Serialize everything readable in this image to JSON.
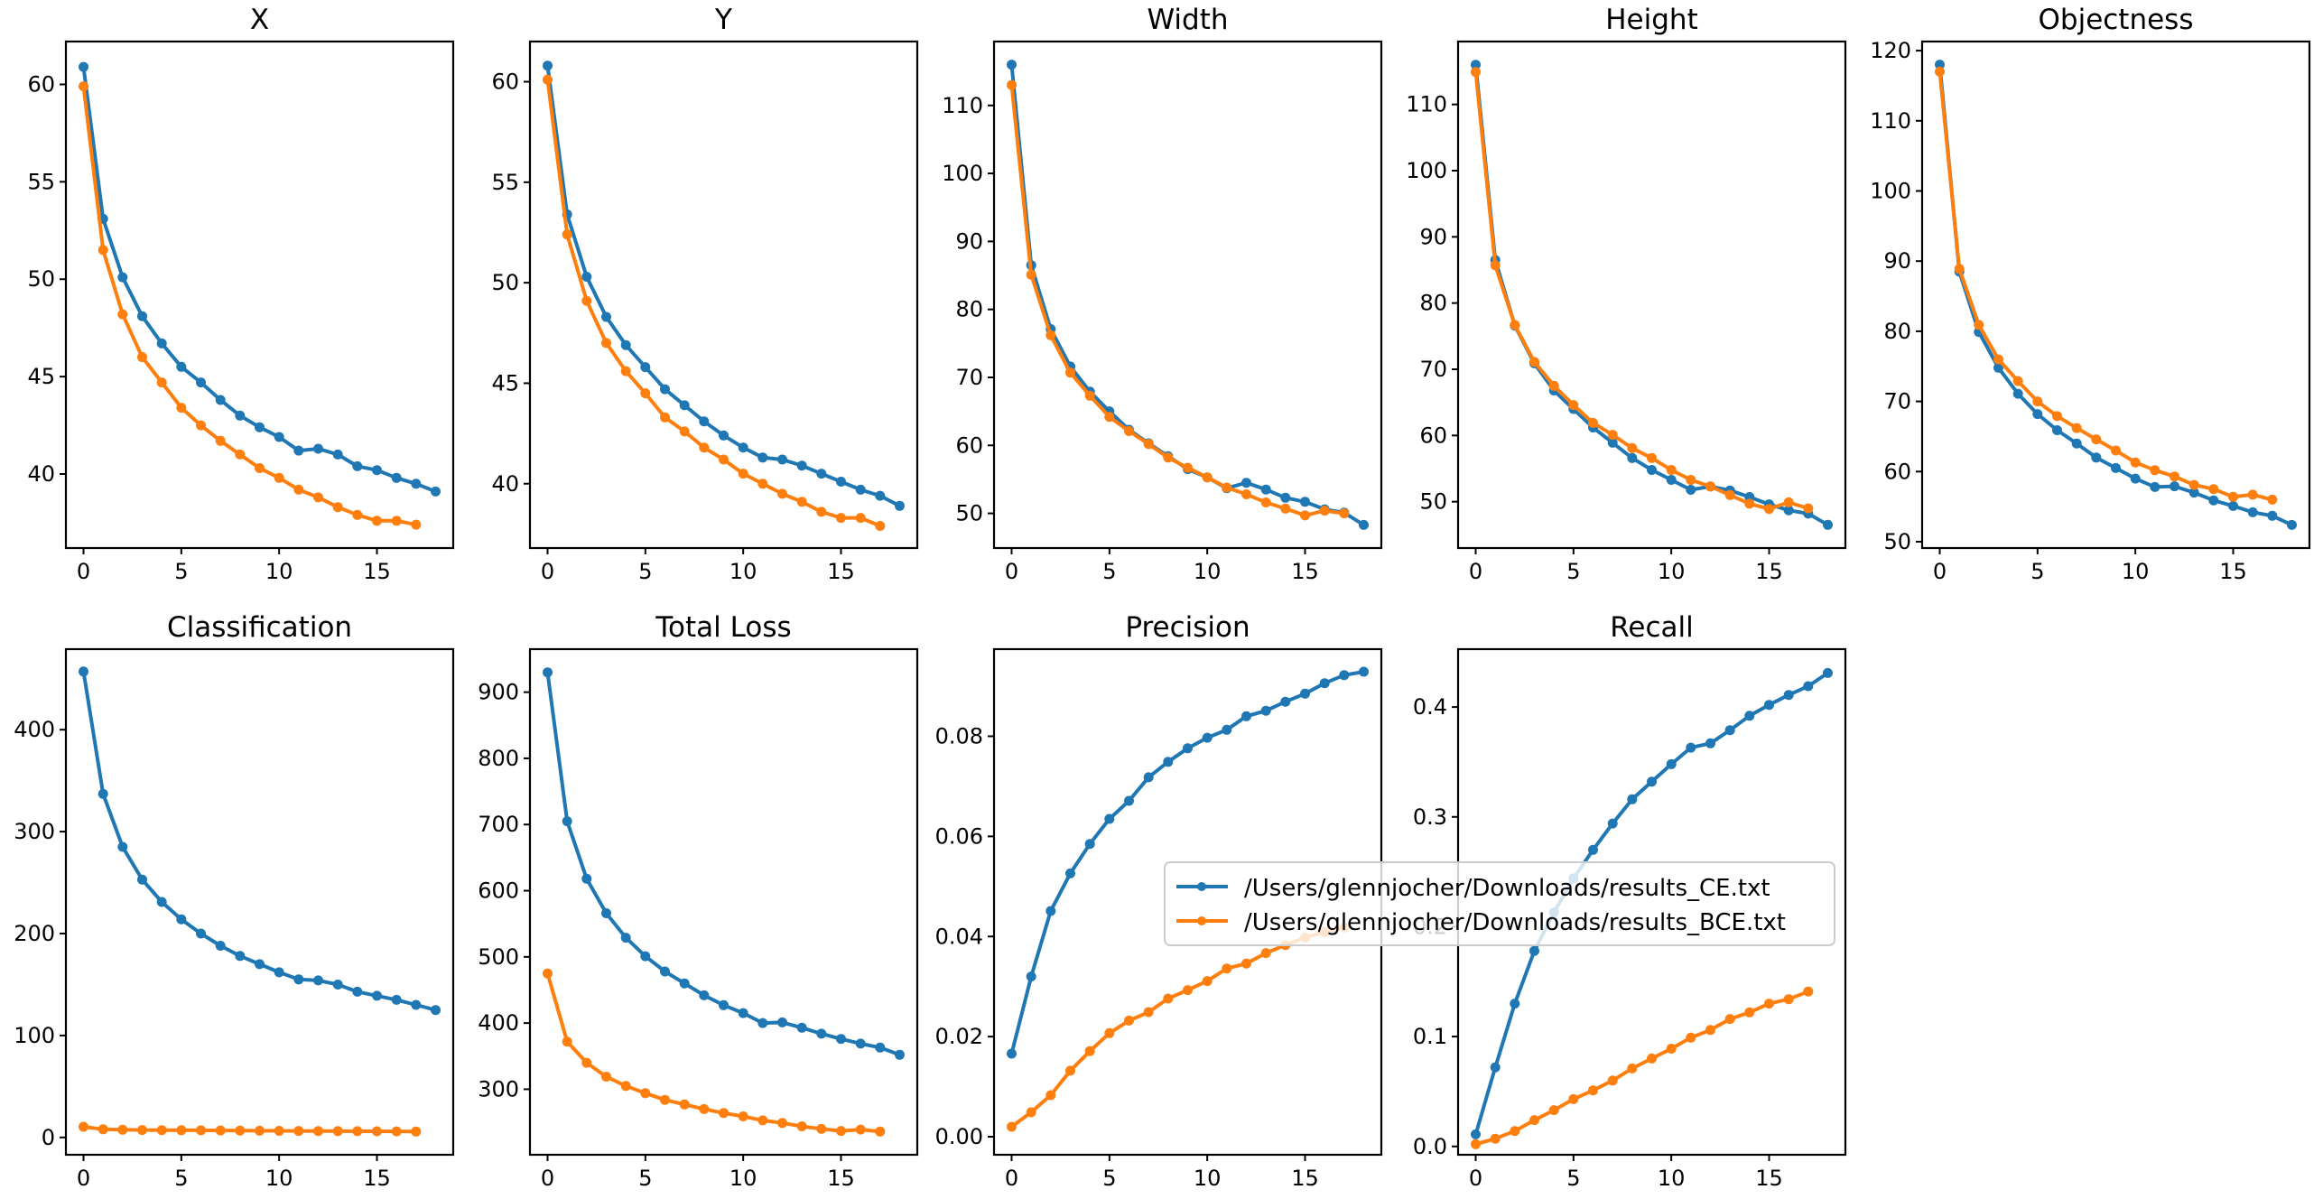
{
  "chart_data": [
    {
      "type": "line",
      "title": "X",
      "xlabel": "",
      "ylabel": "",
      "x": [
        0,
        1,
        2,
        3,
        4,
        5,
        6,
        7,
        8,
        9,
        10,
        11,
        12,
        13,
        14,
        15,
        16,
        17,
        18
      ],
      "xticks": [
        0,
        5,
        10,
        15
      ],
      "xlim": [
        -0.9,
        18.9
      ],
      "ylim": [
        36.2,
        62.2
      ],
      "yticks": [
        40,
        45,
        50,
        55,
        60
      ],
      "series": [
        {
          "name": "/Users/glennjocher/Downloads/results_CE.txt",
          "color": "#1f77b4",
          "values": [
            60.9,
            53.1,
            50.1,
            48.1,
            46.7,
            45.5,
            44.7,
            43.8,
            43.0,
            42.4,
            41.9,
            41.2,
            41.3,
            41.0,
            40.4,
            40.2,
            39.8,
            39.5,
            39.1
          ]
        },
        {
          "name": "/Users/glennjocher/Downloads/results_BCE.txt",
          "color": "#ff7f0e",
          "values": [
            59.9,
            51.5,
            48.2,
            46.0,
            44.7,
            43.4,
            42.5,
            41.7,
            41.0,
            40.3,
            39.8,
            39.2,
            38.8,
            38.3,
            37.9,
            37.6,
            37.6,
            37.4
          ]
        }
      ]
    },
    {
      "type": "line",
      "title": "Y",
      "xlabel": "",
      "ylabel": "",
      "x": [
        0,
        1,
        2,
        3,
        4,
        5,
        6,
        7,
        8,
        9,
        10,
        11,
        12,
        13,
        14,
        15,
        16,
        17,
        18
      ],
      "xticks": [
        0,
        5,
        10,
        15
      ],
      "xlim": [
        -0.9,
        18.9
      ],
      "ylim": [
        36.8,
        62.0
      ],
      "yticks": [
        40,
        45,
        50,
        55,
        60
      ],
      "series": [
        {
          "name": "/Users/glennjocher/Downloads/results_CE.txt",
          "color": "#1f77b4",
          "values": [
            60.8,
            53.4,
            50.3,
            48.3,
            46.9,
            45.8,
            44.7,
            43.9,
            43.1,
            42.4,
            41.8,
            41.3,
            41.2,
            40.9,
            40.5,
            40.1,
            39.7,
            39.4,
            38.9
          ]
        },
        {
          "name": "/Users/glennjocher/Downloads/results_BCE.txt",
          "color": "#ff7f0e",
          "values": [
            60.1,
            52.4,
            49.1,
            47.0,
            45.6,
            44.5,
            43.3,
            42.6,
            41.8,
            41.2,
            40.5,
            40.0,
            39.5,
            39.1,
            38.6,
            38.3,
            38.3,
            37.9
          ]
        }
      ]
    },
    {
      "type": "line",
      "title": "Width",
      "xlabel": "",
      "ylabel": "",
      "x": [
        0,
        1,
        2,
        3,
        4,
        5,
        6,
        7,
        8,
        9,
        10,
        11,
        12,
        13,
        14,
        15,
        16,
        17,
        18
      ],
      "xticks": [
        0,
        5,
        10,
        15
      ],
      "xlim": [
        -0.9,
        18.9
      ],
      "ylim": [
        44.9,
        119.4
      ],
      "yticks": [
        50,
        60,
        70,
        80,
        90,
        100,
        110
      ],
      "series": [
        {
          "name": "/Users/glennjocher/Downloads/results_CE.txt",
          "color": "#1f77b4",
          "values": [
            116.0,
            86.5,
            77.1,
            71.6,
            67.9,
            65.0,
            62.3,
            60.3,
            58.4,
            56.5,
            55.3,
            53.7,
            54.5,
            53.5,
            52.3,
            51.7,
            50.6,
            50.1,
            48.3
          ]
        },
        {
          "name": "/Users/glennjocher/Downloads/results_BCE.txt",
          "color": "#ff7f0e",
          "values": [
            113.0,
            85.1,
            76.2,
            70.7,
            67.3,
            64.2,
            62.1,
            60.2,
            58.2,
            56.7,
            55.3,
            53.8,
            52.8,
            51.6,
            50.7,
            49.7,
            50.4,
            50.0
          ]
        }
      ]
    },
    {
      "type": "line",
      "title": "Height",
      "xlabel": "",
      "ylabel": "",
      "x": [
        0,
        1,
        2,
        3,
        4,
        5,
        6,
        7,
        8,
        9,
        10,
        11,
        12,
        13,
        14,
        15,
        16,
        17,
        18
      ],
      "xticks": [
        0,
        5,
        10,
        15
      ],
      "xlim": [
        -0.9,
        18.9
      ],
      "ylim": [
        43.0,
        119.5
      ],
      "yticks": [
        50,
        60,
        70,
        80,
        90,
        100,
        110
      ],
      "series": [
        {
          "name": "/Users/glennjocher/Downloads/results_CE.txt",
          "color": "#1f77b4",
          "values": [
            116.0,
            86.5,
            76.6,
            70.9,
            66.8,
            64.0,
            61.2,
            58.9,
            56.6,
            54.8,
            53.3,
            51.8,
            52.3,
            51.7,
            50.7,
            49.6,
            48.7,
            48.2,
            46.5
          ]
        },
        {
          "name": "/Users/glennjocher/Downloads/results_BCE.txt",
          "color": "#ff7f0e",
          "values": [
            114.9,
            85.7,
            76.7,
            71.1,
            67.5,
            64.6,
            61.9,
            60.1,
            58.1,
            56.6,
            54.8,
            53.3,
            52.3,
            51.0,
            49.7,
            48.9,
            49.9,
            49.0
          ]
        }
      ]
    },
    {
      "type": "line",
      "title": "Objectness",
      "xlabel": "",
      "ylabel": "",
      "x": [
        0,
        1,
        2,
        3,
        4,
        5,
        6,
        7,
        8,
        9,
        10,
        11,
        12,
        13,
        14,
        15,
        16,
        17,
        18
      ],
      "xticks": [
        0,
        5,
        10,
        15
      ],
      "xlim": [
        -0.9,
        18.9
      ],
      "ylim": [
        49.1,
        121.3
      ],
      "yticks": [
        50,
        60,
        70,
        80,
        90,
        100,
        110,
        120
      ],
      "series": [
        {
          "name": "/Users/glennjocher/Downloads/results_CE.txt",
          "color": "#1f77b4",
          "values": [
            118.0,
            88.5,
            79.9,
            74.8,
            71.1,
            68.2,
            65.9,
            64.0,
            62.0,
            60.5,
            59.0,
            57.8,
            57.9,
            57.0,
            55.9,
            55.1,
            54.2,
            53.7,
            52.4
          ]
        },
        {
          "name": "/Users/glennjocher/Downloads/results_BCE.txt",
          "color": "#ff7f0e",
          "values": [
            117.0,
            88.9,
            80.9,
            76.0,
            72.9,
            70.0,
            67.9,
            66.2,
            64.6,
            63.0,
            61.3,
            60.2,
            59.3,
            58.1,
            57.5,
            56.4,
            56.7,
            56.0
          ]
        }
      ]
    },
    {
      "type": "line",
      "title": "Classification",
      "xlabel": "",
      "ylabel": "",
      "x": [
        0,
        1,
        2,
        3,
        4,
        5,
        6,
        7,
        8,
        9,
        10,
        11,
        12,
        13,
        14,
        15,
        16,
        17,
        18
      ],
      "xticks": [
        0,
        5,
        10,
        15
      ],
      "xlim": [
        -0.9,
        18.9
      ],
      "ylim": [
        -17,
        479
      ],
      "yticks": [
        0,
        100,
        200,
        300,
        400
      ],
      "series": [
        {
          "name": "/Users/glennjocher/Downloads/results_CE.txt",
          "color": "#1f77b4",
          "values": [
            457,
            337,
            285,
            253,
            231,
            214,
            200,
            188,
            178,
            170,
            162,
            155,
            154,
            150,
            143,
            139,
            135,
            130,
            125
          ]
        },
        {
          "name": "/Users/glennjocher/Downloads/results_BCE.txt",
          "color": "#ff7f0e",
          "values": [
            10.5,
            8.0,
            7.5,
            7.3,
            7.2,
            7.1,
            7.0,
            6.8,
            6.7,
            6.6,
            6.5,
            6.4,
            6.3,
            6.2,
            6.1,
            6.0,
            5.9,
            5.8
          ]
        }
      ]
    },
    {
      "type": "line",
      "title": "Total Loss",
      "xlabel": "",
      "ylabel": "",
      "x": [
        0,
        1,
        2,
        3,
        4,
        5,
        6,
        7,
        8,
        9,
        10,
        11,
        12,
        13,
        14,
        15,
        16,
        17,
        18
      ],
      "xticks": [
        0,
        5,
        10,
        15
      ],
      "xlim": [
        -0.9,
        18.9
      ],
      "ylim": [
        201,
        965
      ],
      "yticks": [
        300,
        400,
        500,
        600,
        700,
        800,
        900
      ],
      "series": [
        {
          "name": "/Users/glennjocher/Downloads/results_CE.txt",
          "color": "#1f77b4",
          "values": [
            930,
            705,
            618,
            566,
            529,
            501,
            478,
            460,
            442,
            427,
            415,
            400,
            401,
            393,
            384,
            376,
            369,
            363,
            352
          ]
        },
        {
          "name": "/Users/glennjocher/Downloads/results_BCE.txt",
          "color": "#ff7f0e",
          "values": [
            475,
            372,
            340,
            319,
            305,
            294,
            284,
            277,
            270,
            264,
            259,
            253,
            249,
            244,
            240,
            237,
            239,
            236
          ]
        }
      ]
    },
    {
      "type": "line",
      "title": "Precision",
      "xlabel": "",
      "ylabel": "",
      "x": [
        0,
        1,
        2,
        3,
        4,
        5,
        6,
        7,
        8,
        9,
        10,
        11,
        12,
        13,
        14,
        15,
        16,
        17,
        18
      ],
      "xticks": [
        0,
        5,
        10,
        15
      ],
      "xlim": [
        -0.9,
        18.9
      ],
      "ylim": [
        -0.0036,
        0.0974
      ],
      "yticks": [
        0.0,
        0.02,
        0.04,
        0.06,
        0.08
      ],
      "yticklabels": [
        "0.00",
        "0.02",
        "0.04",
        "0.06",
        "0.08"
      ],
      "series": [
        {
          "name": "/Users/glennjocher/Downloads/results_CE.txt",
          "color": "#1f77b4",
          "values": [
            0.0166,
            0.032,
            0.0451,
            0.0526,
            0.0585,
            0.0635,
            0.0671,
            0.0718,
            0.0749,
            0.0776,
            0.0797,
            0.0813,
            0.084,
            0.0851,
            0.0869,
            0.0885,
            0.0906,
            0.0922,
            0.0929
          ]
        },
        {
          "name": "/Users/glennjocher/Downloads/results_BCE.txt",
          "color": "#ff7f0e",
          "values": [
            0.002,
            0.0049,
            0.0083,
            0.0132,
            0.0171,
            0.0207,
            0.0232,
            0.0249,
            0.0276,
            0.0293,
            0.0311,
            0.0336,
            0.0346,
            0.0367,
            0.0383,
            0.0398,
            0.0409,
            0.0418
          ]
        }
      ]
    },
    {
      "type": "line",
      "title": "Recall",
      "xlabel": "",
      "ylabel": "",
      "x": [
        0,
        1,
        2,
        3,
        4,
        5,
        6,
        7,
        8,
        9,
        10,
        11,
        12,
        13,
        14,
        15,
        16,
        17,
        18
      ],
      "xticks": [
        0,
        5,
        10,
        15
      ],
      "xlim": [
        -0.9,
        18.9
      ],
      "ylim": [
        -0.0076,
        0.4527
      ],
      "yticks": [
        0.0,
        0.1,
        0.2,
        0.3,
        0.4
      ],
      "yticklabels": [
        "0.0",
        "0.1",
        "0.2",
        "0.3",
        "0.4"
      ],
      "series": [
        {
          "name": "/Users/glennjocher/Downloads/results_CE.txt",
          "color": "#1f77b4",
          "values": [
            0.011,
            0.072,
            0.13,
            0.178,
            0.213,
            0.244,
            0.27,
            0.294,
            0.316,
            0.332,
            0.348,
            0.363,
            0.367,
            0.379,
            0.392,
            0.402,
            0.411,
            0.419,
            0.431
          ]
        },
        {
          "name": "/Users/glennjocher/Downloads/results_BCE.txt",
          "color": "#ff7f0e",
          "values": [
            0.002,
            0.007,
            0.014,
            0.024,
            0.033,
            0.043,
            0.051,
            0.06,
            0.071,
            0.08,
            0.089,
            0.099,
            0.106,
            0.116,
            0.122,
            0.13,
            0.134,
            0.141
          ]
        }
      ]
    }
  ],
  "legend": {
    "placement": "center, overlapping Precision and Recall panels",
    "entries": [
      {
        "label": "/Users/glennjocher/Downloads/results_CE.txt",
        "color": "#1f77b4"
      },
      {
        "label": "/Users/glennjocher/Downloads/results_BCE.txt",
        "color": "#ff7f0e"
      }
    ]
  }
}
